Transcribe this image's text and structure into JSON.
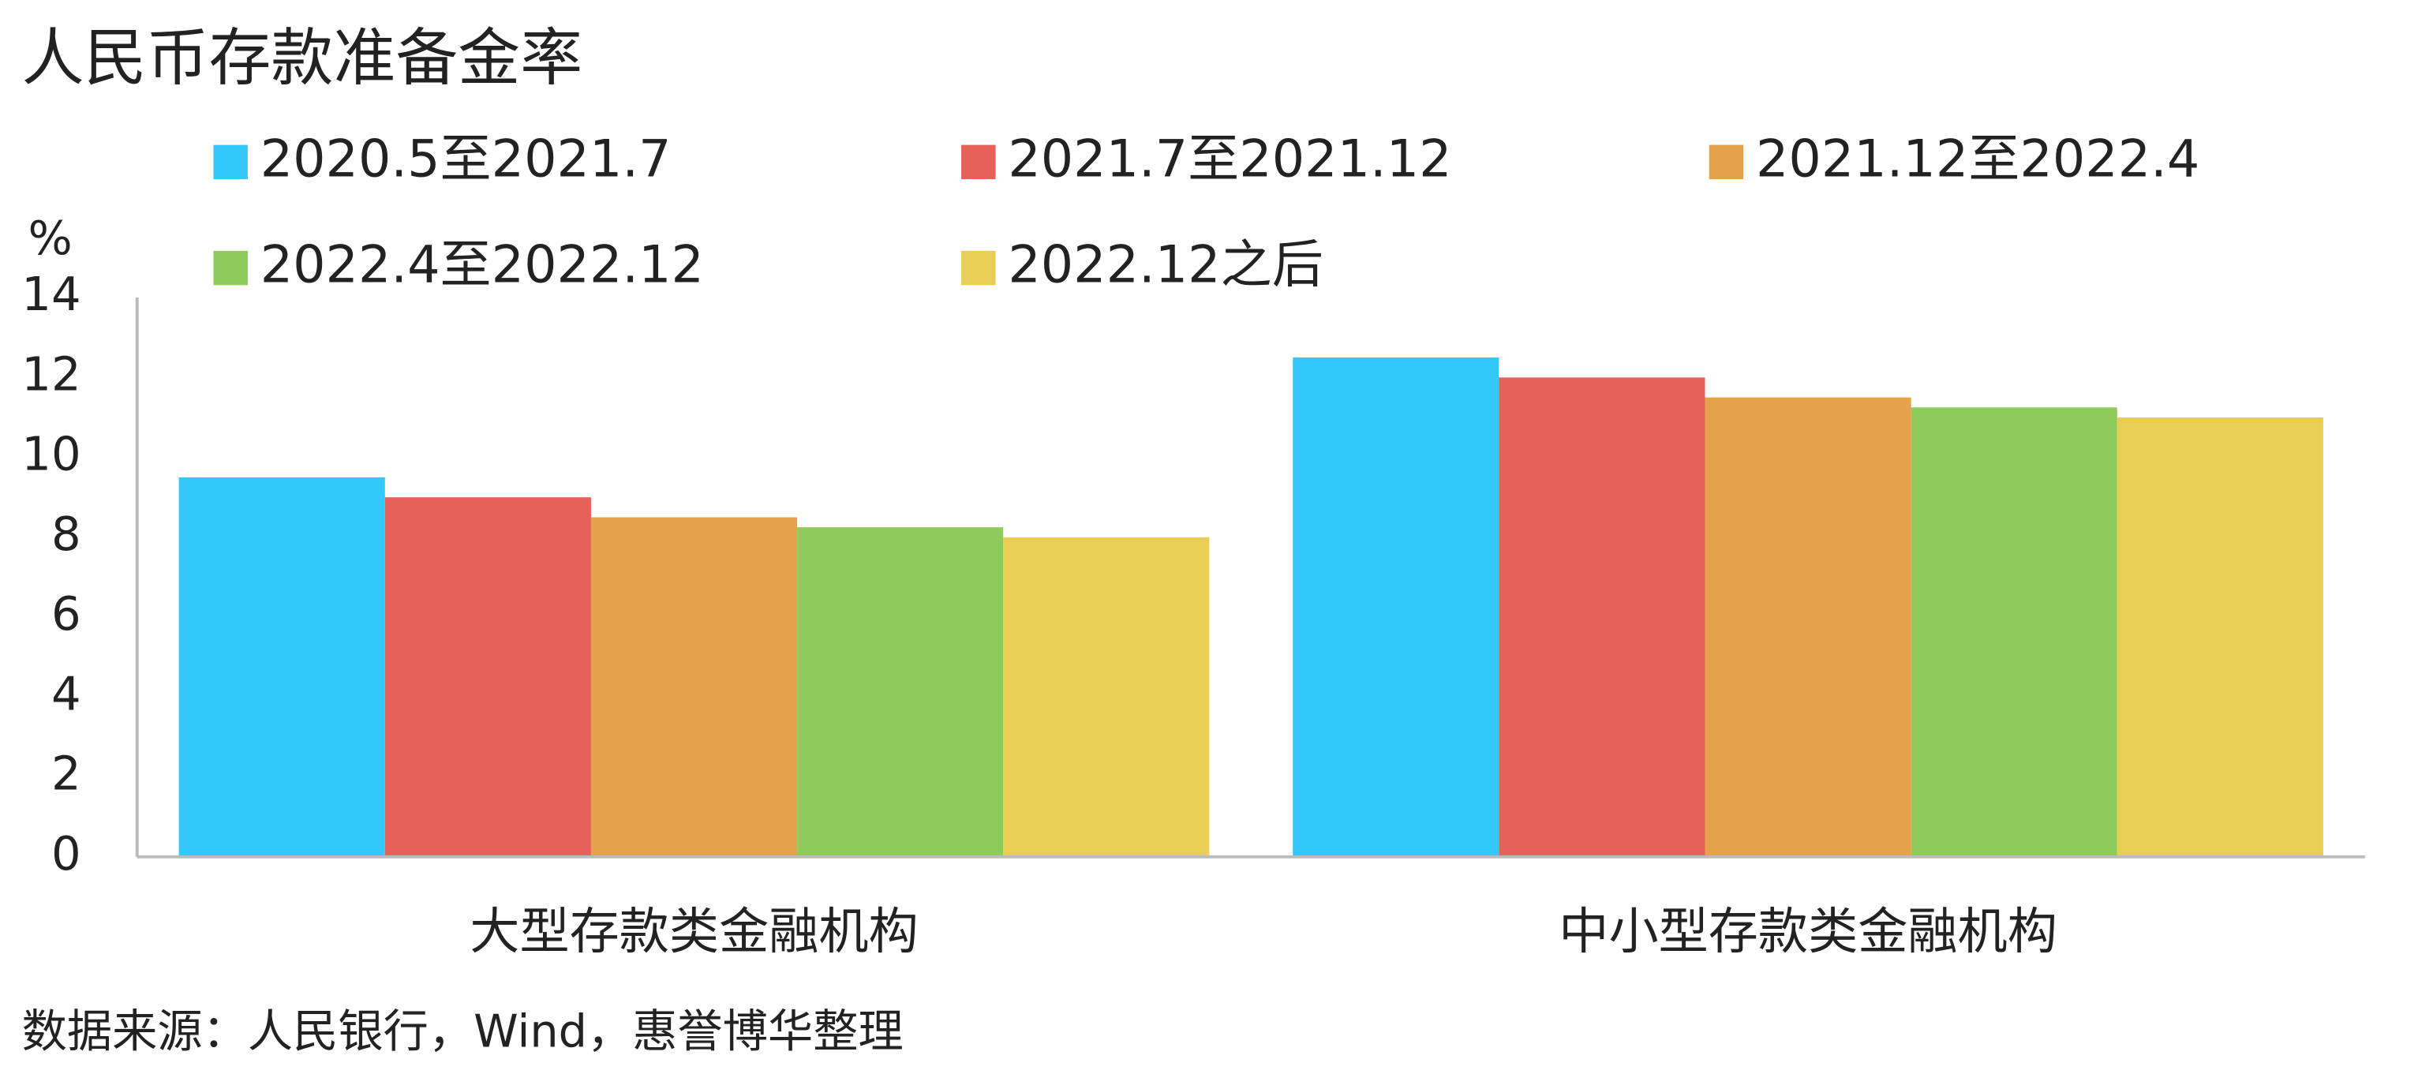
{
  "chart_data": {
    "type": "bar",
    "title": "人民币存款准备金率",
    "y_label": "%",
    "source": "数据来源：人民银行，Wind，惠誉博华整理",
    "categories": [
      "大型存款类金融机构",
      "中小型存款类金融机构"
    ],
    "series": [
      {
        "name": "2020.5至2021.7",
        "color": "#33c8fb",
        "values": [
          9.5,
          12.5
        ]
      },
      {
        "name": "2021.7至2021.12",
        "color": "#e8605a",
        "values": [
          9.0,
          12.0
        ]
      },
      {
        "name": "2021.12至2022.4",
        "color": "#e4a24c",
        "values": [
          8.5,
          11.5
        ]
      },
      {
        "name": "2022.4至2022.12",
        "color": "#8fcb5c",
        "values": [
          8.25,
          11.25
        ]
      },
      {
        "name": "2022.12之后",
        "color": "#e9cd55",
        "values": [
          8.0,
          11.0
        ]
      }
    ],
    "ylim": [
      0,
      14
    ],
    "yticks": [
      0,
      2,
      4,
      6,
      8,
      10,
      12,
      14
    ],
    "legend": "top"
  }
}
